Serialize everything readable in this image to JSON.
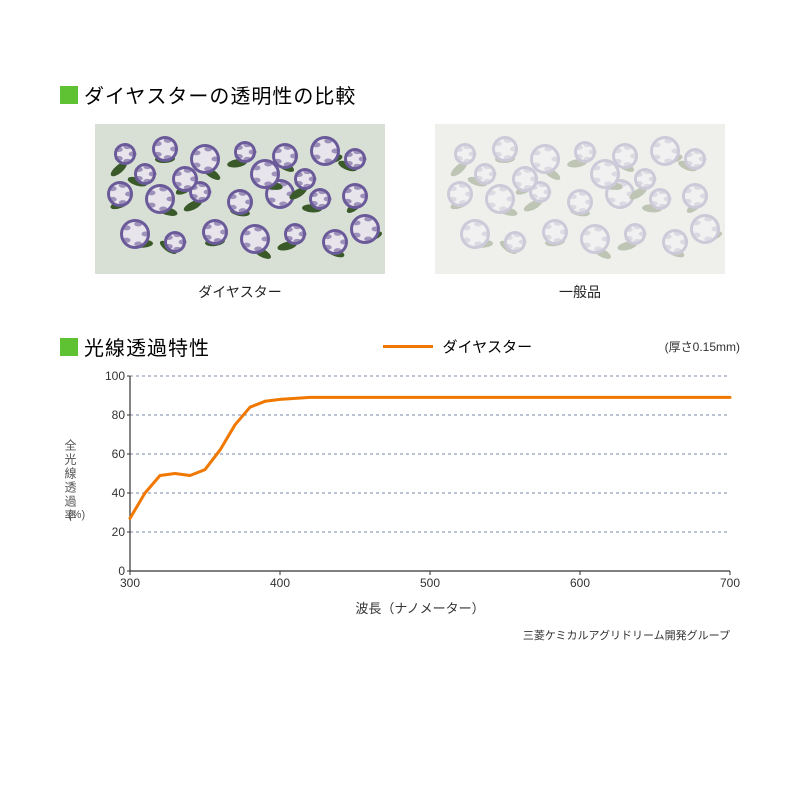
{
  "section1": {
    "title": "ダイヤスターの透明性の比較",
    "bulletColor": "#5ec232",
    "titleColor": "#222222",
    "image1Caption": "ダイヤスター",
    "image2Caption": "一般品",
    "imageClear": {
      "bgColor": "#d8e0d5",
      "flowerPetal": "#e8e4ec",
      "flowerEdge": "#6a5a9a",
      "leafColor": "#3a5a2a"
    },
    "imageHazy": {
      "bgColor": "#e6e8e4",
      "flowerPetal": "#ecebef",
      "flowerEdge": "#9a92b8",
      "leafColor": "#7a8a6a",
      "overlayColor": "#f5f5f2",
      "overlayOpacity": 0.55
    }
  },
  "chart": {
    "title": "光線透過特性",
    "bulletColor": "#5ec232",
    "titleColor": "#222222",
    "legendLabel": "ダイヤスター",
    "legendColor": "#f07800",
    "thicknessNote": "(厚さ0.15mm)",
    "yLabel": "全光線透過率",
    "yUnit": "(%)",
    "xLabel": "波長（ナノメーター）",
    "attribution": "三菱ケミカルアグリドリーム開発グループ",
    "lineColor": "#f07800",
    "lineWidth": 3,
    "gridColor": "#7a8aa8",
    "gridDash": "3,3",
    "axisColor": "#333333",
    "xlim": [
      300,
      700
    ],
    "ylim": [
      0,
      100
    ],
    "xticks": [
      300,
      400,
      500,
      600,
      700
    ],
    "yticks": [
      0,
      20,
      40,
      60,
      80,
      100
    ],
    "tickFontSize": 12,
    "data": [
      [
        300,
        27
      ],
      [
        310,
        40
      ],
      [
        320,
        49
      ],
      [
        330,
        50
      ],
      [
        340,
        49
      ],
      [
        350,
        52
      ],
      [
        360,
        62
      ],
      [
        370,
        75
      ],
      [
        380,
        84
      ],
      [
        390,
        87
      ],
      [
        400,
        88
      ],
      [
        420,
        89
      ],
      [
        450,
        89
      ],
      [
        500,
        89
      ],
      [
        550,
        89
      ],
      [
        600,
        89
      ],
      [
        650,
        89
      ],
      [
        700,
        89
      ]
    ]
  }
}
